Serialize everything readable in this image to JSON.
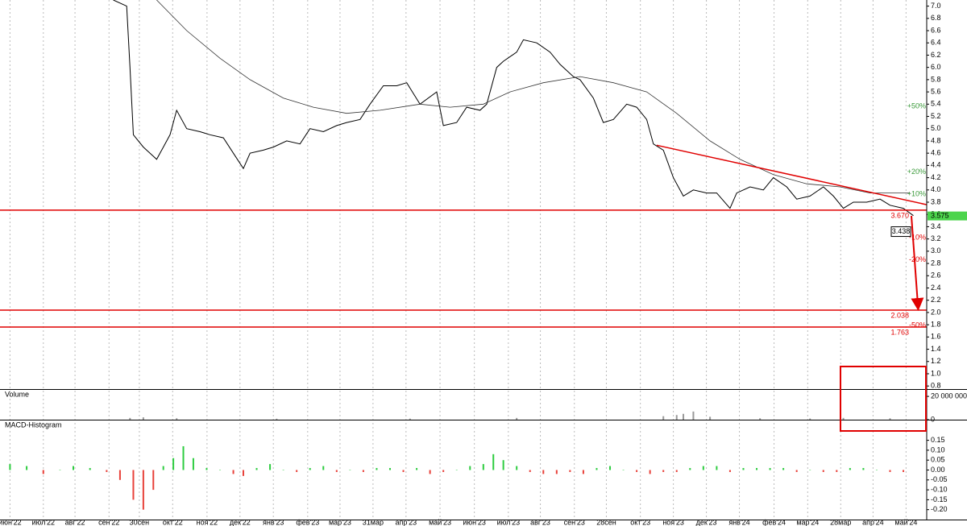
{
  "chart_data": [
    {
      "type": "line",
      "xlim": [
        -0.3,
        27.5
      ],
      "ylim": [
        0.75,
        7.1
      ],
      "yticks": [
        0.8,
        {
          "value": 1.0,
          "label": "1.0"
        },
        1.2,
        1.4,
        1.6,
        1.8,
        {
          "value": 2.0,
          "label": "2.0"
        },
        2.2,
        2.4,
        2.6,
        2.8,
        {
          "value": 3.0,
          "label": "3.0"
        },
        3.2,
        3.4,
        3.6,
        3.8,
        {
          "value": 4.0,
          "label": "4.0"
        },
        4.2,
        4.4,
        4.6,
        4.8,
        {
          "value": 5.0,
          "label": "5.0"
        },
        5.2,
        5.4,
        5.6,
        5.8,
        {
          "value": 6.0,
          "label": "6.0"
        },
        6.2,
        6.4,
        6.6,
        6.8,
        {
          "value": 7.0,
          "label": "7.0"
        }
      ],
      "series": [
        {
          "color": "#000000",
          "x": [
            3.1,
            3.5,
            3.6,
            3.7,
            4.0,
            4.2,
            4.4,
            4.6,
            4.8,
            5.0,
            5.3,
            5.7,
            6.0,
            6.4,
            6.7,
            7.0,
            7.2,
            7.6,
            7.9,
            8.3,
            8.7,
            9.0,
            9.4,
            9.8,
            10.1,
            10.5,
            10.8,
            11.2,
            11.6,
            11.9,
            12.3,
            12.8,
            13.0,
            13.4,
            13.7,
            14.1,
            14.3,
            14.6,
            14.8,
            15.2,
            15.4,
            15.8,
            16.2,
            16.5,
            16.9,
            17.1,
            17.5,
            17.8,
            18.1,
            18.5,
            18.8,
            19.1,
            19.3,
            19.6,
            19.9,
            20.2,
            20.5,
            20.9,
            21.2,
            21.6,
            21.8,
            22.2,
            22.6,
            22.9,
            23.3,
            23.6,
            24.0,
            24.4,
            24.7,
            25.0,
            25.3,
            25.7,
            26.1,
            26.4,
            26.8,
            27.1
          ],
          "values": [
            7.1,
            7.0,
            6.0,
            4.9,
            4.7,
            4.6,
            4.5,
            4.7,
            4.9,
            5.3,
            5.0,
            4.95,
            4.9,
            4.85,
            4.6,
            4.35,
            4.6,
            4.65,
            4.7,
            4.8,
            4.75,
            5.0,
            4.95,
            5.05,
            5.1,
            5.15,
            5.4,
            5.7,
            5.7,
            5.75,
            5.4,
            5.6,
            5.05,
            5.1,
            5.35,
            5.3,
            5.4,
            6.0,
            6.1,
            6.25,
            6.45,
            6.4,
            6.25,
            6.05,
            5.85,
            5.8,
            5.5,
            5.1,
            5.15,
            5.4,
            5.35,
            5.15,
            4.75,
            4.65,
            4.2,
            3.9,
            4.0,
            3.95,
            3.95,
            3.7,
            3.95,
            4.05,
            4.0,
            4.2,
            4.05,
            3.85,
            3.9,
            4.05,
            3.9,
            3.7,
            3.8,
            3.8,
            3.85,
            3.75,
            3.7,
            3.58
          ]
        },
        {
          "color": "#333333",
          "x": [
            4.4,
            5.3,
            6.3,
            7.2,
            8.2,
            9.1,
            10.1,
            11.1,
            12.3,
            13.2,
            14.2,
            15.0,
            16.0,
            17.1,
            18.1,
            19.1,
            20.0,
            21.0,
            21.9,
            22.9,
            23.9,
            24.9,
            25.8,
            27.0
          ],
          "values": [
            7.1,
            6.6,
            6.15,
            5.8,
            5.5,
            5.35,
            5.25,
            5.3,
            5.4,
            5.35,
            5.4,
            5.6,
            5.75,
            5.85,
            5.75,
            5.6,
            5.25,
            4.8,
            4.5,
            4.25,
            4.1,
            4.05,
            3.95,
            3.95
          ]
        }
      ],
      "trendline": {
        "x": [
          19.4,
          27.5
        ],
        "values": [
          4.73,
          3.76
        ],
        "color": "#e00000"
      },
      "lines": [
        {
          "value": 3.67,
          "label": "3.670"
        },
        {
          "value": 2.038,
          "label": "2.038"
        },
        {
          "value": 1.763,
          "label": "1.763"
        }
      ],
      "line_color": "#e00000",
      "levels": [
        {
          "value": 5.36,
          "label": "+50%",
          "color": "#3a9a3a"
        },
        {
          "value": 4.29,
          "label": "+20%",
          "color": "#3a9a3a"
        },
        {
          "value": 3.93,
          "label": "+10%",
          "color": "#3a9a3a"
        },
        {
          "value": 3.22,
          "label": "-10%",
          "color": "#e00000"
        },
        {
          "value": 2.86,
          "label": "-20%",
          "color": "#e00000"
        },
        {
          "value": 1.79,
          "label": "-50%",
          "color": "#e00000"
        }
      ],
      "last_price": {
        "value": 3.575,
        "label": "3.575",
        "color": "#4cd44c"
      },
      "marker": {
        "value": 3.438,
        "label": "3.438"
      }
    },
    {
      "type": "bar",
      "title": "Volume",
      "color": "#999999",
      "xlim": [
        -0.3,
        27.5
      ],
      "ylim": [
        0,
        25600000
      ],
      "yticks": [
        {
          "value": 20000000,
          "label": "20 000 000"
        },
        0
      ],
      "x": [
        3.6,
        4.0,
        5.0,
        8.0,
        12.0,
        15.2,
        19.6,
        20.0,
        20.2,
        20.5,
        21.0,
        22.5,
        24.0,
        25.0,
        26.4
      ],
      "values": [
        1500000,
        2000000,
        1200000,
        800000,
        900000,
        1500000,
        3000000,
        4000000,
        5000000,
        7000000,
        2500000,
        1200000,
        1000000,
        1500000,
        1200000
      ]
    },
    {
      "type": "bar",
      "title": "MACD-Histogram",
      "colors": {
        "positive": "#2ecc40",
        "negative": "#e8413a"
      },
      "xlim": [
        -0.3,
        27.5
      ],
      "ylim": [
        -0.25,
        0.25
      ],
      "yticks": [
        0.15,
        {
          "value": 0.1,
          "label": "0.10"
        },
        0.05,
        {
          "value": 0,
          "label": "0.00"
        },
        -0.05,
        {
          "value": -0.1,
          "label": "-0.10"
        },
        -0.15,
        {
          "value": -0.2,
          "label": "-0.20"
        }
      ],
      "xticks": [
        {
          "value": 0.0,
          "label": "июн'22"
        },
        {
          "value": 1.0,
          "label": "июл'22"
        },
        {
          "value": 1.95,
          "label": "авг'22"
        },
        {
          "value": 2.97,
          "label": "сен'22"
        },
        {
          "value": 3.88,
          "label": "30сен"
        },
        {
          "value": 4.88,
          "label": "окт'22"
        },
        {
          "value": 5.91,
          "label": "ноя'22"
        },
        {
          "value": 6.9,
          "label": "дек'22"
        },
        {
          "value": 7.9,
          "label": "янв'23"
        },
        {
          "value": 8.93,
          "label": "фев'23"
        },
        {
          "value": 9.9,
          "label": "мар'23"
        },
        {
          "value": 10.89,
          "label": "31мар"
        },
        {
          "value": 11.88,
          "label": "апр'23"
        },
        {
          "value": 12.9,
          "label": "май'23"
        },
        {
          "value": 13.93,
          "label": "июн'23"
        },
        {
          "value": 14.95,
          "label": "июл'23"
        },
        {
          "value": 15.91,
          "label": "авг'23"
        },
        {
          "value": 16.93,
          "label": "сен'23"
        },
        {
          "value": 17.89,
          "label": "28сен"
        },
        {
          "value": 18.91,
          "label": "окт'23"
        },
        {
          "value": 19.9,
          "label": "ноя'23"
        },
        {
          "value": 20.89,
          "label": "дек'23"
        },
        {
          "value": 21.88,
          "label": "янв'24"
        },
        {
          "value": 22.92,
          "label": "фев'24"
        },
        {
          "value": 23.93,
          "label": "мар'24"
        },
        {
          "value": 24.92,
          "label": "28мар"
        },
        {
          "value": 25.89,
          "label": "апр'24"
        },
        {
          "value": 26.88,
          "label": "май'24"
        }
      ],
      "x": [
        0,
        0.5,
        1.0,
        1.5,
        1.9,
        2.4,
        2.9,
        3.3,
        3.7,
        4.0,
        4.3,
        4.6,
        4.9,
        5.2,
        5.5,
        5.9,
        6.3,
        6.7,
        7.0,
        7.4,
        7.8,
        8.2,
        8.6,
        9.0,
        9.4,
        9.8,
        10.2,
        10.6,
        11.0,
        11.4,
        11.8,
        12.2,
        12.6,
        13.0,
        13.4,
        13.8,
        14.2,
        14.5,
        14.8,
        15.2,
        15.6,
        16.0,
        16.4,
        16.8,
        17.2,
        17.6,
        18.0,
        18.4,
        18.8,
        19.2,
        19.6,
        20.0,
        20.4,
        20.8,
        21.2,
        21.6,
        22.0,
        22.4,
        22.8,
        23.2,
        23.6,
        24.0,
        24.4,
        24.8,
        25.2,
        25.6,
        26.0,
        26.4,
        26.8
      ],
      "values": [
        0.03,
        0.02,
        -0.02,
        0.0,
        0.02,
        0.01,
        -0.01,
        -0.05,
        -0.15,
        -0.2,
        -0.1,
        0.02,
        0.06,
        0.12,
        0.06,
        0.01,
        0.0,
        -0.02,
        -0.03,
        0.01,
        0.03,
        0.0,
        -0.01,
        0.01,
        0.02,
        -0.01,
        0.0,
        -0.01,
        0.01,
        0.01,
        -0.01,
        0.01,
        -0.02,
        -0.01,
        0.0,
        0.02,
        0.03,
        0.08,
        0.05,
        0.02,
        -0.01,
        -0.02,
        -0.02,
        -0.01,
        -0.02,
        0.01,
        0.02,
        0.0,
        -0.01,
        -0.02,
        -0.01,
        -0.01,
        0.01,
        0.02,
        0.02,
        -0.01,
        0.01,
        0.01,
        0.01,
        0.01,
        -0.01,
        0.0,
        -0.01,
        -0.01,
        0.01,
        0.01,
        0.0,
        -0.01,
        -0.01
      ]
    }
  ]
}
